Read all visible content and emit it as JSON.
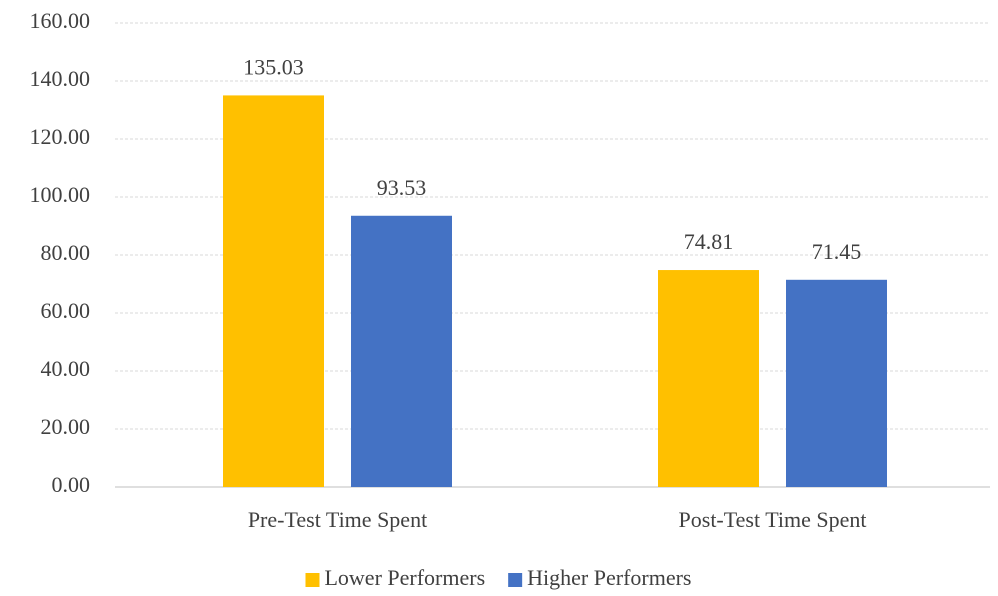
{
  "chart_data": {
    "type": "bar",
    "categories": [
      "Pre-Test Time Spent",
      "Post-Test Time Spent"
    ],
    "series": [
      {
        "name": "Lower Performers",
        "color": "#ffc000",
        "values": [
          135.03,
          74.81
        ]
      },
      {
        "name": "Higher Performers",
        "color": "#4472c4",
        "values": [
          93.53,
          71.45
        ]
      }
    ],
    "ylim": [
      0,
      160
    ],
    "yticks": [
      {
        "value": 0,
        "label": "0.00"
      },
      {
        "value": 20,
        "label": "20.00"
      },
      {
        "value": 40,
        "label": "40.00"
      },
      {
        "value": 60,
        "label": "60.00"
      },
      {
        "value": 80,
        "label": "80.00"
      },
      {
        "value": 100,
        "label": "100.00"
      },
      {
        "value": 120,
        "label": "120.00"
      },
      {
        "value": 140,
        "label": "140.00"
      },
      {
        "value": 160,
        "label": "160.00"
      }
    ],
    "grid": true,
    "legend": "bottom"
  }
}
